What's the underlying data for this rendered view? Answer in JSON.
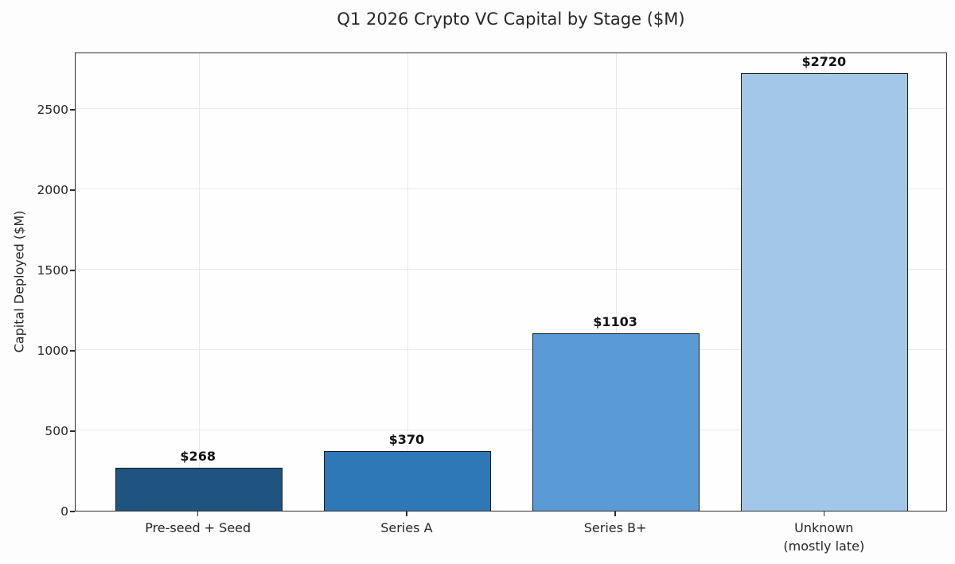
{
  "chart_data": {
    "type": "bar",
    "title": "Q1 2026 Crypto VC Capital by Stage ($M)",
    "xlabel": "",
    "ylabel": "Capital Deployed ($M)",
    "categories": [
      "Pre-seed + Seed",
      "Series A",
      "Series B+",
      "Unknown\n(mostly late)"
    ],
    "values": [
      268,
      370,
      1103,
      2720
    ],
    "value_labels": [
      "$268",
      "$370",
      "$1103",
      "$2720"
    ],
    "bar_colors": [
      "#1f5480",
      "#2e78b8",
      "#5b9bd5",
      "#a3c7e8"
    ],
    "bar_edge_color": "#1a1a1a",
    "yticks": [
      0,
      500,
      1000,
      1500,
      2000,
      2500
    ],
    "ylim": [
      0,
      2856
    ],
    "grid": true,
    "gridline_color": "#eaeaea",
    "legend_position": "none"
  }
}
